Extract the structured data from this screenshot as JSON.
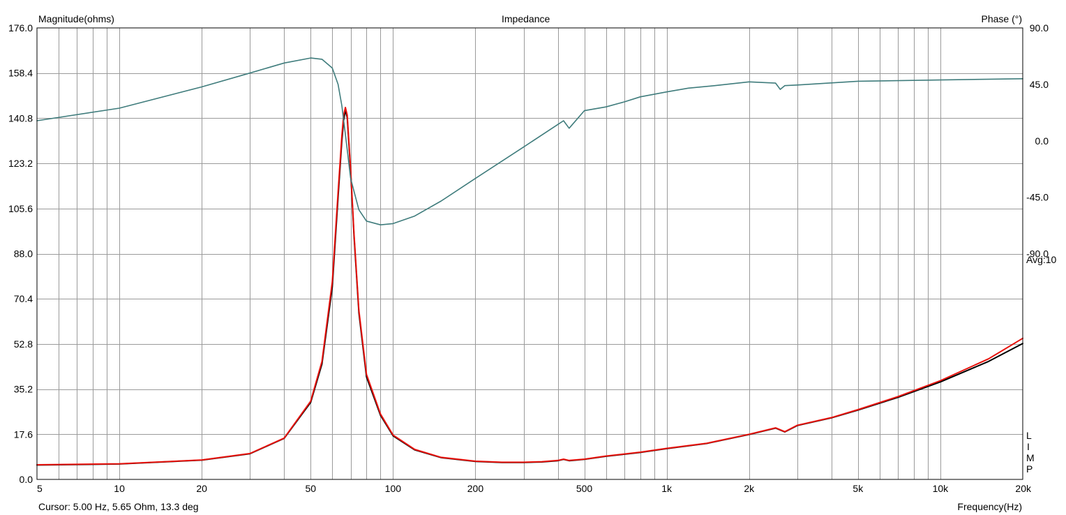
{
  "chart_data": {
    "type": "line",
    "title": "Impedance",
    "ylabel_left": "Magnitude(ohms)",
    "ylabel_right": "Phase (°)",
    "xlabel": "Frequency(Hz)",
    "x_scale": "log",
    "xlim": [
      5,
      20000
    ],
    "ylim_left": [
      0,
      176
    ],
    "ylim_right": [
      -270,
      90
    ],
    "grid": true,
    "x_ticks": [
      {
        "v": 5,
        "label": "5"
      },
      {
        "v": 10,
        "label": "10"
      },
      {
        "v": 20,
        "label": "20"
      },
      {
        "v": 50,
        "label": "50"
      },
      {
        "v": 100,
        "label": "100"
      },
      {
        "v": 200,
        "label": "200"
      },
      {
        "v": 500,
        "label": "500"
      },
      {
        "v": 1000,
        "label": "1k"
      },
      {
        "v": 2000,
        "label": "2k"
      },
      {
        "v": 5000,
        "label": "5k"
      },
      {
        "v": 10000,
        "label": "10k"
      },
      {
        "v": 20000,
        "label": "20k"
      }
    ],
    "y_left_ticks": [
      "0.0",
      "17.6",
      "35.2",
      "52.8",
      "70.4",
      "88.0",
      "105.6",
      "123.2",
      "140.8",
      "158.4",
      "176.0"
    ],
    "y_right_ticks": [
      "90.0",
      "45.0",
      "0.0",
      "-45.0",
      "-90.0"
    ],
    "series": [
      {
        "name": "",
        "axis": "left",
        "color": "#000000",
        "x": [
          5,
          10,
          20,
          30,
          40,
          50,
          55,
          60,
          63,
          65,
          66,
          67,
          68,
          70,
          72,
          75,
          80,
          90,
          100,
          120,
          150,
          200,
          250,
          300,
          350,
          400,
          420,
          440,
          500,
          600,
          800,
          1000,
          1400,
          2000,
          2500,
          2700,
          3000,
          4000,
          5000,
          7000,
          10000,
          15000,
          20000
        ],
        "y": [
          5.6,
          6.0,
          7.5,
          10.0,
          16.0,
          30.0,
          45.0,
          75.0,
          110.0,
          132.0,
          140.0,
          144.0,
          141.0,
          120.0,
          95.0,
          65.0,
          40.0,
          25.0,
          17.0,
          11.5,
          8.5,
          7.0,
          6.6,
          6.6,
          6.8,
          7.3,
          7.8,
          7.3,
          7.8,
          9.0,
          10.5,
          12.0,
          14.0,
          17.5,
          20.0,
          18.5,
          21.0,
          24.0,
          27.0,
          32.0,
          38.0,
          46.0,
          53.0
        ]
      },
      {
        "name": "",
        "axis": "left",
        "color": "#e8120c",
        "x": [
          5,
          10,
          20,
          30,
          40,
          50,
          55,
          60,
          63,
          65,
          66,
          67,
          68,
          70,
          72,
          75,
          80,
          90,
          100,
          120,
          150,
          200,
          250,
          300,
          350,
          400,
          420,
          440,
          500,
          600,
          800,
          1000,
          1400,
          2000,
          2500,
          2700,
          3000,
          4000,
          5000,
          7000,
          10000,
          15000,
          20000
        ],
        "y": [
          5.7,
          6.1,
          7.6,
          10.1,
          16.1,
          30.5,
          46.0,
          77.0,
          112.0,
          134.0,
          142.0,
          145.0,
          142.0,
          121.0,
          96.0,
          66.0,
          41.0,
          25.5,
          17.3,
          11.7,
          8.6,
          7.1,
          6.7,
          6.7,
          6.9,
          7.4,
          7.9,
          7.4,
          7.9,
          9.1,
          10.6,
          12.1,
          14.1,
          17.6,
          20.1,
          18.6,
          21.1,
          24.1,
          27.2,
          32.3,
          38.5,
          47.0,
          55.0
        ]
      },
      {
        "name": "",
        "axis": "right",
        "color": "#3f7c7c",
        "x": [
          5,
          10,
          20,
          30,
          40,
          50,
          55,
          60,
          63,
          65,
          67,
          70,
          75,
          80,
          90,
          100,
          120,
          150,
          200,
          300,
          400,
          420,
          440,
          500,
          600,
          700,
          800,
          1000,
          1200,
          1500,
          2000,
          2500,
          2600,
          2700,
          3000,
          5000,
          10000,
          20000
        ],
        "y": [
          16.0,
          26.0,
          43.0,
          54.0,
          62.0,
          66.0,
          65.0,
          58.0,
          45.0,
          28.0,
          5.0,
          -30.0,
          -55.0,
          -64.0,
          -67.0,
          -66.0,
          -60.0,
          -48.0,
          -30.0,
          -5.0,
          13.0,
          16.0,
          10.0,
          24.0,
          27.0,
          31.0,
          35.0,
          39.0,
          42.0,
          44.0,
          47.0,
          46.0,
          41.0,
          44.0,
          44.5,
          47.5,
          48.5,
          49.5
        ]
      }
    ],
    "annotations": [
      "Avg:10",
      "L",
      "I",
      "M",
      "P"
    ],
    "cursor_readout": "Cursor: 5.00 Hz, 5.65 Ohm, 13.3 deg"
  }
}
